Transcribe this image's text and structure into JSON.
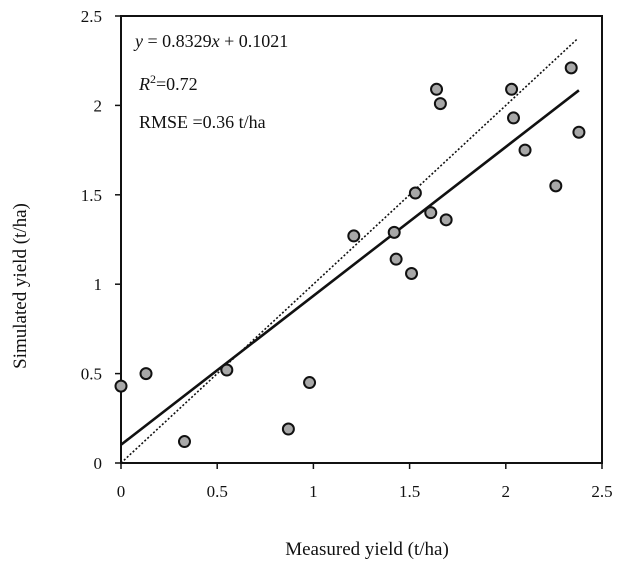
{
  "chart_data": {
    "type": "scatter",
    "xlabel": "Measured  yield (t/ha)",
    "ylabel": "Simulated yield (t/ha)",
    "xlim": [
      0,
      2.5
    ],
    "ylim": [
      0,
      2.5
    ],
    "x_ticks": [
      "0",
      "0.5",
      "1",
      "1.5",
      "2",
      "2.5"
    ],
    "y_ticks": [
      "0",
      "0.5",
      "1",
      "1.5",
      "2",
      "2.5"
    ],
    "grid": false,
    "legend": "none",
    "points": [
      {
        "x": 0.0,
        "y": 0.43
      },
      {
        "x": 0.13,
        "y": 0.5
      },
      {
        "x": 0.33,
        "y": 0.12
      },
      {
        "x": 0.55,
        "y": 0.52
      },
      {
        "x": 0.87,
        "y": 0.19
      },
      {
        "x": 0.98,
        "y": 0.45
      },
      {
        "x": 1.21,
        "y": 1.27
      },
      {
        "x": 1.42,
        "y": 1.29
      },
      {
        "x": 1.43,
        "y": 1.14
      },
      {
        "x": 1.51,
        "y": 1.06
      },
      {
        "x": 1.53,
        "y": 1.51
      },
      {
        "x": 1.61,
        "y": 1.4
      },
      {
        "x": 1.64,
        "y": 2.09
      },
      {
        "x": 1.66,
        "y": 2.01
      },
      {
        "x": 1.69,
        "y": 1.36
      },
      {
        "x": 2.03,
        "y": 2.09
      },
      {
        "x": 2.04,
        "y": 1.93
      },
      {
        "x": 2.1,
        "y": 1.75
      },
      {
        "x": 2.26,
        "y": 1.55
      },
      {
        "x": 2.34,
        "y": 2.21
      },
      {
        "x": 2.38,
        "y": 1.85
      }
    ],
    "regression_line": {
      "slope": 0.8329,
      "intercept": 0.1021,
      "x_range": [
        0,
        2.38
      ]
    },
    "one_to_one_line": {
      "x_range": [
        0,
        2.37
      ]
    },
    "annotations": {
      "equation_y": "y",
      "equation_mid": " = 0.8329",
      "equation_x": "x",
      "equation_end": " + 0.1021",
      "r2_label": "R",
      "r2_sup": "2",
      "r2_value": "=0.72",
      "rmse": "RMSE =0.36 t/ha"
    },
    "colors": {
      "point_fill": "#a8a8a8",
      "point_stroke": "#111111",
      "line": "#111111"
    }
  }
}
